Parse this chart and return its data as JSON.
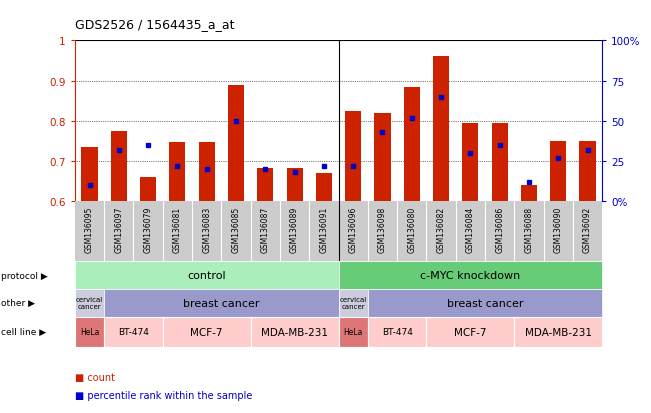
{
  "title": "GDS2526 / 1564435_a_at",
  "samples": [
    "GSM136095",
    "GSM136097",
    "GSM136079",
    "GSM136081",
    "GSM136083",
    "GSM136085",
    "GSM136087",
    "GSM136089",
    "GSM136091",
    "GSM136096",
    "GSM136098",
    "GSM136080",
    "GSM136082",
    "GSM136084",
    "GSM136086",
    "GSM136088",
    "GSM136090",
    "GSM136092"
  ],
  "count_vals": [
    0.735,
    0.775,
    0.66,
    0.748,
    0.748,
    0.888,
    0.682,
    0.682,
    0.67,
    0.825,
    0.82,
    0.885,
    0.96,
    0.795,
    0.795,
    0.64,
    0.75,
    0.75
  ],
  "pct_vals_pct": [
    10,
    32,
    35,
    22,
    20,
    50,
    20,
    18,
    22,
    22,
    43,
    52,
    65,
    30,
    35,
    12,
    27,
    32
  ],
  "ylim": [
    0.6,
    1.0
  ],
  "yticks_left": [
    0.6,
    0.7,
    0.8,
    0.9,
    1.0
  ],
  "ytick_labels_left": [
    "0.6",
    "0.7",
    "0.8",
    "0.9",
    "1"
  ],
  "right_tick_pcts": [
    0,
    25,
    50,
    75,
    100
  ],
  "right_tick_labels": [
    "0%",
    "25",
    "50",
    "75",
    "100%"
  ],
  "bar_color": "#cc2200",
  "dot_color": "#0000cc",
  "left_axis_color": "#cc2200",
  "right_axis_color": "#0000cc",
  "protocol_control_color": "#aaeebb",
  "protocol_cmyc_color": "#66cc77",
  "other_cervical_color": "#ccccdd",
  "other_breast_color": "#9999cc",
  "cell_hela_color": "#dd7777",
  "cell_light_color": "#ffcccc",
  "xtick_bg_color": "#cccccc",
  "n_samples": 18,
  "control_n": 9,
  "cmyc_n": 9,
  "cell_spans_control": [
    [
      0,
      1,
      "HeLa",
      "hela"
    ],
    [
      1,
      2,
      "BT-474",
      "light"
    ],
    [
      3,
      3,
      "MCF-7",
      "light"
    ],
    [
      6,
      3,
      "MDA-MB-231",
      "light"
    ]
  ],
  "cell_spans_cmyc": [
    [
      9,
      1,
      "HeLa",
      "hela"
    ],
    [
      10,
      2,
      "BT-474",
      "light"
    ],
    [
      12,
      3,
      "MCF-7",
      "light"
    ],
    [
      15,
      3,
      "MDA-MB-231",
      "light"
    ]
  ]
}
